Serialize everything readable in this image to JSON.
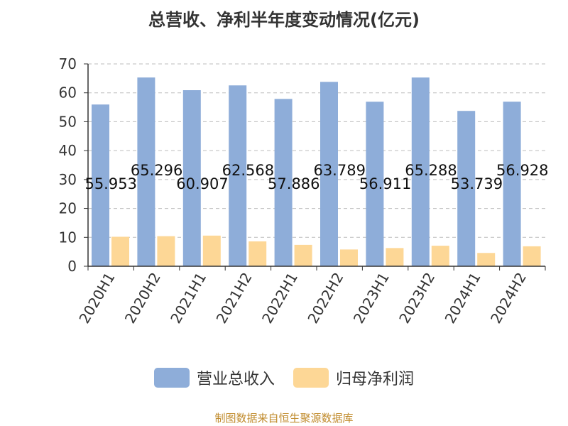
{
  "colors": {
    "revenue": "#8eadd9",
    "net_profit": "#fdd796",
    "axis": "#333333",
    "grid": "#bdbdbd",
    "source": "#c08b2c"
  },
  "source_note": "制图数据来自恒生聚源数据库",
  "chart_data": {
    "type": "bar",
    "title": "总营收、净利半年度变动情况(亿元)",
    "xlabel": "",
    "ylabel": "",
    "ylim": [
      0,
      70
    ],
    "yticks": [
      0,
      10,
      20,
      30,
      40,
      50,
      60,
      70
    ],
    "grid": true,
    "legend_position": "bottom",
    "categories": [
      "2020H1",
      "2020H2",
      "2021H1",
      "2021H2",
      "2022H1",
      "2022H2",
      "2023H1",
      "2023H2",
      "2024H1",
      "2024H2"
    ],
    "series": [
      {
        "name": "营业总收入",
        "values": [
          55.953,
          65.296,
          60.907,
          62.568,
          57.886,
          63.789,
          56.911,
          65.288,
          53.739,
          56.928
        ],
        "labels": [
          "55.953",
          "65.296",
          "60.907",
          "62.568",
          "57.886",
          "63.789",
          "56.911",
          "65.288",
          "53.739",
          "56.928"
        ]
      },
      {
        "name": "归母净利润",
        "values": [
          10.2,
          10.4,
          10.6,
          8.6,
          7.4,
          5.8,
          6.3,
          7.1,
          4.6,
          6.9
        ]
      }
    ]
  }
}
